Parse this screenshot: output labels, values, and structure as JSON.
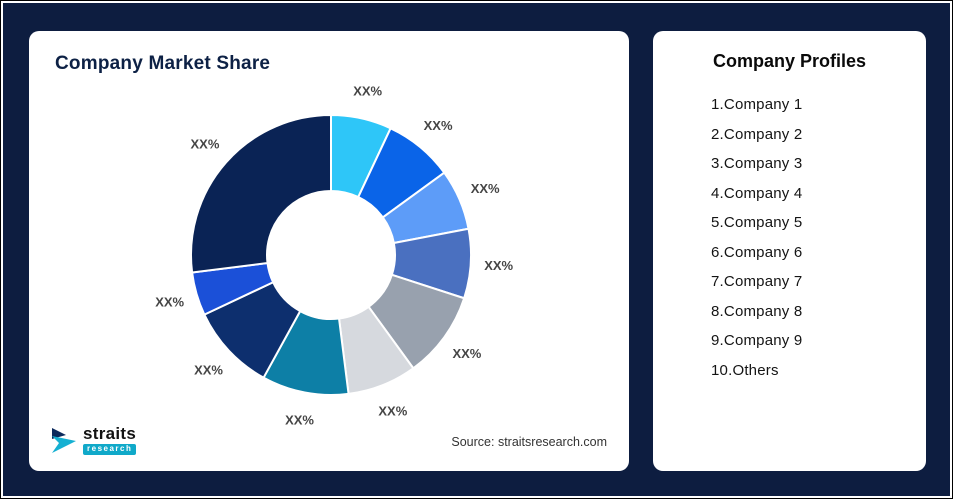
{
  "theme": {
    "background": "#0d1d40",
    "card_bg": "#ffffff",
    "title_color": "#0d2145",
    "label_color": "#454545",
    "logo_accent": "#10a9c9"
  },
  "left_card": {
    "title": "Company Market Share",
    "source": "Source: straitsresearch.com",
    "logo": {
      "brand": "straits",
      "sub": "research"
    }
  },
  "right_card": {
    "title": "Company Profiles",
    "items": [
      "1.Company 1",
      "2.Company 2",
      "3.Company 3",
      "4.Company 4",
      "5.Company 5",
      "6.Company 6",
      "7.Company 7",
      "8.Company 8",
      "9.Company 9",
      "10.Others"
    ]
  },
  "chart_data": {
    "type": "pie",
    "subtype": "donut",
    "title": "Company Market Share",
    "categories": [
      "Company 1",
      "Company 2",
      "Company 3",
      "Company 4",
      "Company 5",
      "Company 6",
      "Company 7",
      "Company 8",
      "Company 9",
      "Others"
    ],
    "labels": [
      "XX%",
      "XX%",
      "XX%",
      "XX%",
      "XX%",
      "XX%",
      "XX%",
      "XX%",
      "XX%",
      "XX%"
    ],
    "values": [
      7,
      8,
      7,
      8,
      10,
      8,
      10,
      10,
      5,
      27
    ],
    "values_note": "estimated from arc angles; chart shows placeholder XX% labels",
    "colors": [
      "#2ec6f8",
      "#0a64e8",
      "#5d9cf8",
      "#4a70c0",
      "#98a1ae",
      "#d6d9de",
      "#0d7fa6",
      "#0d2f6e",
      "#1b50d8",
      "#0a2355"
    ],
    "inner_radius_ratio": 0.46,
    "start_angle_deg": 0,
    "direction": "clockwise",
    "legend": "none",
    "label_position": "outside"
  }
}
